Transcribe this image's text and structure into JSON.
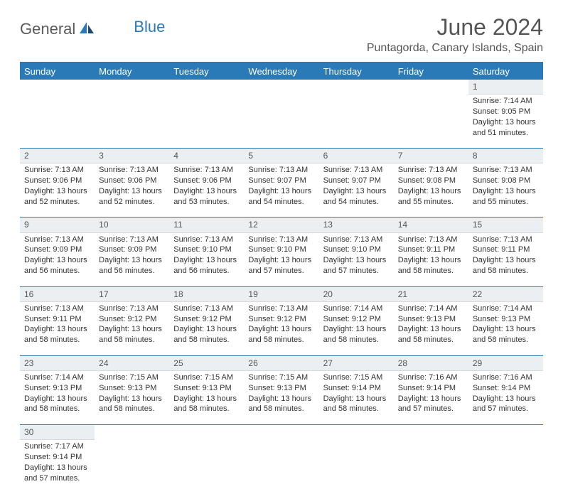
{
  "logo": {
    "general": "General",
    "blue": "Blue"
  },
  "title": "June 2024",
  "location": "Puntagorda, Canary Islands, Spain",
  "weekdays": [
    "Sunday",
    "Monday",
    "Tuesday",
    "Wednesday",
    "Thursday",
    "Friday",
    "Saturday"
  ],
  "colors": {
    "header_bg": "#2a7ab8",
    "header_text": "#ffffff",
    "daynum_bg": "#eceff1",
    "row_divider": "#2a7ab8",
    "text": "#333333",
    "title_text": "#555555"
  },
  "weeks": [
    {
      "nums": [
        "",
        "",
        "",
        "",
        "",
        "",
        "1"
      ],
      "cells": [
        null,
        null,
        null,
        null,
        null,
        null,
        {
          "sr": "Sunrise: 7:14 AM",
          "ss": "Sunset: 9:05 PM",
          "d1": "Daylight: 13 hours",
          "d2": "and 51 minutes."
        }
      ]
    },
    {
      "nums": [
        "2",
        "3",
        "4",
        "5",
        "6",
        "7",
        "8"
      ],
      "cells": [
        {
          "sr": "Sunrise: 7:13 AM",
          "ss": "Sunset: 9:06 PM",
          "d1": "Daylight: 13 hours",
          "d2": "and 52 minutes."
        },
        {
          "sr": "Sunrise: 7:13 AM",
          "ss": "Sunset: 9:06 PM",
          "d1": "Daylight: 13 hours",
          "d2": "and 52 minutes."
        },
        {
          "sr": "Sunrise: 7:13 AM",
          "ss": "Sunset: 9:06 PM",
          "d1": "Daylight: 13 hours",
          "d2": "and 53 minutes."
        },
        {
          "sr": "Sunrise: 7:13 AM",
          "ss": "Sunset: 9:07 PM",
          "d1": "Daylight: 13 hours",
          "d2": "and 54 minutes."
        },
        {
          "sr": "Sunrise: 7:13 AM",
          "ss": "Sunset: 9:07 PM",
          "d1": "Daylight: 13 hours",
          "d2": "and 54 minutes."
        },
        {
          "sr": "Sunrise: 7:13 AM",
          "ss": "Sunset: 9:08 PM",
          "d1": "Daylight: 13 hours",
          "d2": "and 55 minutes."
        },
        {
          "sr": "Sunrise: 7:13 AM",
          "ss": "Sunset: 9:08 PM",
          "d1": "Daylight: 13 hours",
          "d2": "and 55 minutes."
        }
      ]
    },
    {
      "nums": [
        "9",
        "10",
        "11",
        "12",
        "13",
        "14",
        "15"
      ],
      "cells": [
        {
          "sr": "Sunrise: 7:13 AM",
          "ss": "Sunset: 9:09 PM",
          "d1": "Daylight: 13 hours",
          "d2": "and 56 minutes."
        },
        {
          "sr": "Sunrise: 7:13 AM",
          "ss": "Sunset: 9:09 PM",
          "d1": "Daylight: 13 hours",
          "d2": "and 56 minutes."
        },
        {
          "sr": "Sunrise: 7:13 AM",
          "ss": "Sunset: 9:10 PM",
          "d1": "Daylight: 13 hours",
          "d2": "and 56 minutes."
        },
        {
          "sr": "Sunrise: 7:13 AM",
          "ss": "Sunset: 9:10 PM",
          "d1": "Daylight: 13 hours",
          "d2": "and 57 minutes."
        },
        {
          "sr": "Sunrise: 7:13 AM",
          "ss": "Sunset: 9:10 PM",
          "d1": "Daylight: 13 hours",
          "d2": "and 57 minutes."
        },
        {
          "sr": "Sunrise: 7:13 AM",
          "ss": "Sunset: 9:11 PM",
          "d1": "Daylight: 13 hours",
          "d2": "and 58 minutes."
        },
        {
          "sr": "Sunrise: 7:13 AM",
          "ss": "Sunset: 9:11 PM",
          "d1": "Daylight: 13 hours",
          "d2": "and 58 minutes."
        }
      ]
    },
    {
      "nums": [
        "16",
        "17",
        "18",
        "19",
        "20",
        "21",
        "22"
      ],
      "cells": [
        {
          "sr": "Sunrise: 7:13 AM",
          "ss": "Sunset: 9:11 PM",
          "d1": "Daylight: 13 hours",
          "d2": "and 58 minutes."
        },
        {
          "sr": "Sunrise: 7:13 AM",
          "ss": "Sunset: 9:12 PM",
          "d1": "Daylight: 13 hours",
          "d2": "and 58 minutes."
        },
        {
          "sr": "Sunrise: 7:13 AM",
          "ss": "Sunset: 9:12 PM",
          "d1": "Daylight: 13 hours",
          "d2": "and 58 minutes."
        },
        {
          "sr": "Sunrise: 7:13 AM",
          "ss": "Sunset: 9:12 PM",
          "d1": "Daylight: 13 hours",
          "d2": "and 58 minutes."
        },
        {
          "sr": "Sunrise: 7:14 AM",
          "ss": "Sunset: 9:12 PM",
          "d1": "Daylight: 13 hours",
          "d2": "and 58 minutes."
        },
        {
          "sr": "Sunrise: 7:14 AM",
          "ss": "Sunset: 9:13 PM",
          "d1": "Daylight: 13 hours",
          "d2": "and 58 minutes."
        },
        {
          "sr": "Sunrise: 7:14 AM",
          "ss": "Sunset: 9:13 PM",
          "d1": "Daylight: 13 hours",
          "d2": "and 58 minutes."
        }
      ]
    },
    {
      "nums": [
        "23",
        "24",
        "25",
        "26",
        "27",
        "28",
        "29"
      ],
      "cells": [
        {
          "sr": "Sunrise: 7:14 AM",
          "ss": "Sunset: 9:13 PM",
          "d1": "Daylight: 13 hours",
          "d2": "and 58 minutes."
        },
        {
          "sr": "Sunrise: 7:15 AM",
          "ss": "Sunset: 9:13 PM",
          "d1": "Daylight: 13 hours",
          "d2": "and 58 minutes."
        },
        {
          "sr": "Sunrise: 7:15 AM",
          "ss": "Sunset: 9:13 PM",
          "d1": "Daylight: 13 hours",
          "d2": "and 58 minutes."
        },
        {
          "sr": "Sunrise: 7:15 AM",
          "ss": "Sunset: 9:13 PM",
          "d1": "Daylight: 13 hours",
          "d2": "and 58 minutes."
        },
        {
          "sr": "Sunrise: 7:15 AM",
          "ss": "Sunset: 9:14 PM",
          "d1": "Daylight: 13 hours",
          "d2": "and 58 minutes."
        },
        {
          "sr": "Sunrise: 7:16 AM",
          "ss": "Sunset: 9:14 PM",
          "d1": "Daylight: 13 hours",
          "d2": "and 57 minutes."
        },
        {
          "sr": "Sunrise: 7:16 AM",
          "ss": "Sunset: 9:14 PM",
          "d1": "Daylight: 13 hours",
          "d2": "and 57 minutes."
        }
      ]
    },
    {
      "nums": [
        "30",
        "",
        "",
        "",
        "",
        "",
        ""
      ],
      "cells": [
        {
          "sr": "Sunrise: 7:17 AM",
          "ss": "Sunset: 9:14 PM",
          "d1": "Daylight: 13 hours",
          "d2": "and 57 minutes."
        },
        null,
        null,
        null,
        null,
        null,
        null
      ]
    }
  ]
}
